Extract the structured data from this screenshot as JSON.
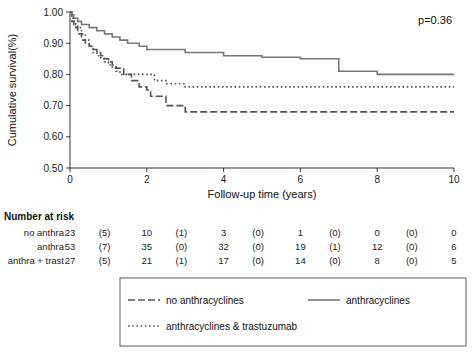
{
  "chart_data": {
    "type": "step",
    "title": "",
    "xlabel": "Follow-up time (years)",
    "ylabel": "Cumulative survival(%)",
    "annotation": "p=0.36",
    "xlim": [
      0,
      10
    ],
    "ylim": [
      0.5,
      1.0
    ],
    "xticks": [
      0,
      2,
      4,
      6,
      8,
      10
    ],
    "yticks": [
      {
        "value": 0.5,
        "label": "0.50"
      },
      {
        "value": 0.6,
        "label": "0.60"
      },
      {
        "value": 0.7,
        "label": "0.70"
      },
      {
        "value": 0.8,
        "label": "0.80"
      },
      {
        "value": 0.9,
        "label": "0.90"
      },
      {
        "value": 1.0,
        "label": "1.00"
      }
    ],
    "grid": false,
    "legend": "bottom",
    "series": [
      {
        "name": "no anthracyclines",
        "color": "#555555",
        "line_style": "dashed",
        "x": [
          0,
          0.05,
          0.1,
          0.15,
          0.2,
          0.3,
          0.4,
          0.5,
          0.6,
          0.7,
          0.8,
          0.9,
          1.0,
          1.1,
          1.2,
          1.4,
          1.6,
          1.8,
          2.0,
          2.1,
          2.5,
          3.0,
          4.0,
          5.0,
          6.0,
          7.0,
          8.0,
          9.0,
          10.0
        ],
        "values": [
          1.0,
          0.97,
          0.96,
          0.95,
          0.93,
          0.91,
          0.9,
          0.89,
          0.88,
          0.87,
          0.86,
          0.85,
          0.84,
          0.83,
          0.82,
          0.8,
          0.78,
          0.76,
          0.75,
          0.73,
          0.7,
          0.68,
          0.68,
          0.68,
          0.68,
          0.68,
          0.68,
          0.68,
          0.68
        ]
      },
      {
        "name": "anthracyclines",
        "color": "#777777",
        "line_style": "solid",
        "x": [
          0,
          0.05,
          0.1,
          0.2,
          0.3,
          0.5,
          0.7,
          0.9,
          1.1,
          1.3,
          1.5,
          1.8,
          2.0,
          3.0,
          4.0,
          5.0,
          6.0,
          6.8,
          7.0,
          8.0,
          9.0,
          10.0
        ],
        "values": [
          1.0,
          0.99,
          0.98,
          0.97,
          0.96,
          0.95,
          0.94,
          0.93,
          0.92,
          0.91,
          0.9,
          0.89,
          0.88,
          0.87,
          0.86,
          0.855,
          0.85,
          0.85,
          0.81,
          0.8,
          0.8,
          0.8
        ]
      },
      {
        "name": "anthracyclines & trastuzumab",
        "color": "#555555",
        "line_style": "dotted",
        "x": [
          0,
          0.05,
          0.1,
          0.15,
          0.2,
          0.3,
          0.4,
          0.5,
          0.6,
          0.7,
          0.8,
          0.9,
          1.0,
          1.1,
          1.2,
          1.3,
          1.4,
          1.5,
          1.8,
          2.0,
          2.2,
          2.5,
          3.0,
          4.0,
          5.0,
          6.0,
          7.0,
          8.0,
          9.0,
          10.0
        ],
        "values": [
          1.0,
          0.98,
          0.97,
          0.96,
          0.95,
          0.93,
          0.91,
          0.89,
          0.87,
          0.86,
          0.85,
          0.84,
          0.83,
          0.82,
          0.81,
          0.8,
          0.8,
          0.8,
          0.8,
          0.8,
          0.78,
          0.77,
          0.76,
          0.76,
          0.76,
          0.76,
          0.76,
          0.76,
          0.76,
          0.76
        ]
      }
    ],
    "number_at_risk": {
      "header": "Number at risk",
      "x": [
        0,
        0.9,
        2,
        2.9,
        4,
        4.9,
        6,
        6.9,
        8,
        8.9,
        10
      ],
      "rows": [
        {
          "label": "no anthra",
          "values": [
            "23",
            "(5)",
            "10",
            "(1)",
            "3",
            "(0)",
            "1",
            "(0)",
            "0",
            "(0)",
            "0"
          ]
        },
        {
          "label": "anthra",
          "values": [
            "53",
            "(7)",
            "35",
            "(0)",
            "32",
            "(0)",
            "19",
            "(1)",
            "12",
            "(0)",
            "6"
          ]
        },
        {
          "label": "anthra + trast",
          "values": [
            "27",
            "(5)",
            "21",
            "(1)",
            "17",
            "(0)",
            "14",
            "(0)",
            "8",
            "(0)",
            "5"
          ]
        }
      ]
    }
  }
}
